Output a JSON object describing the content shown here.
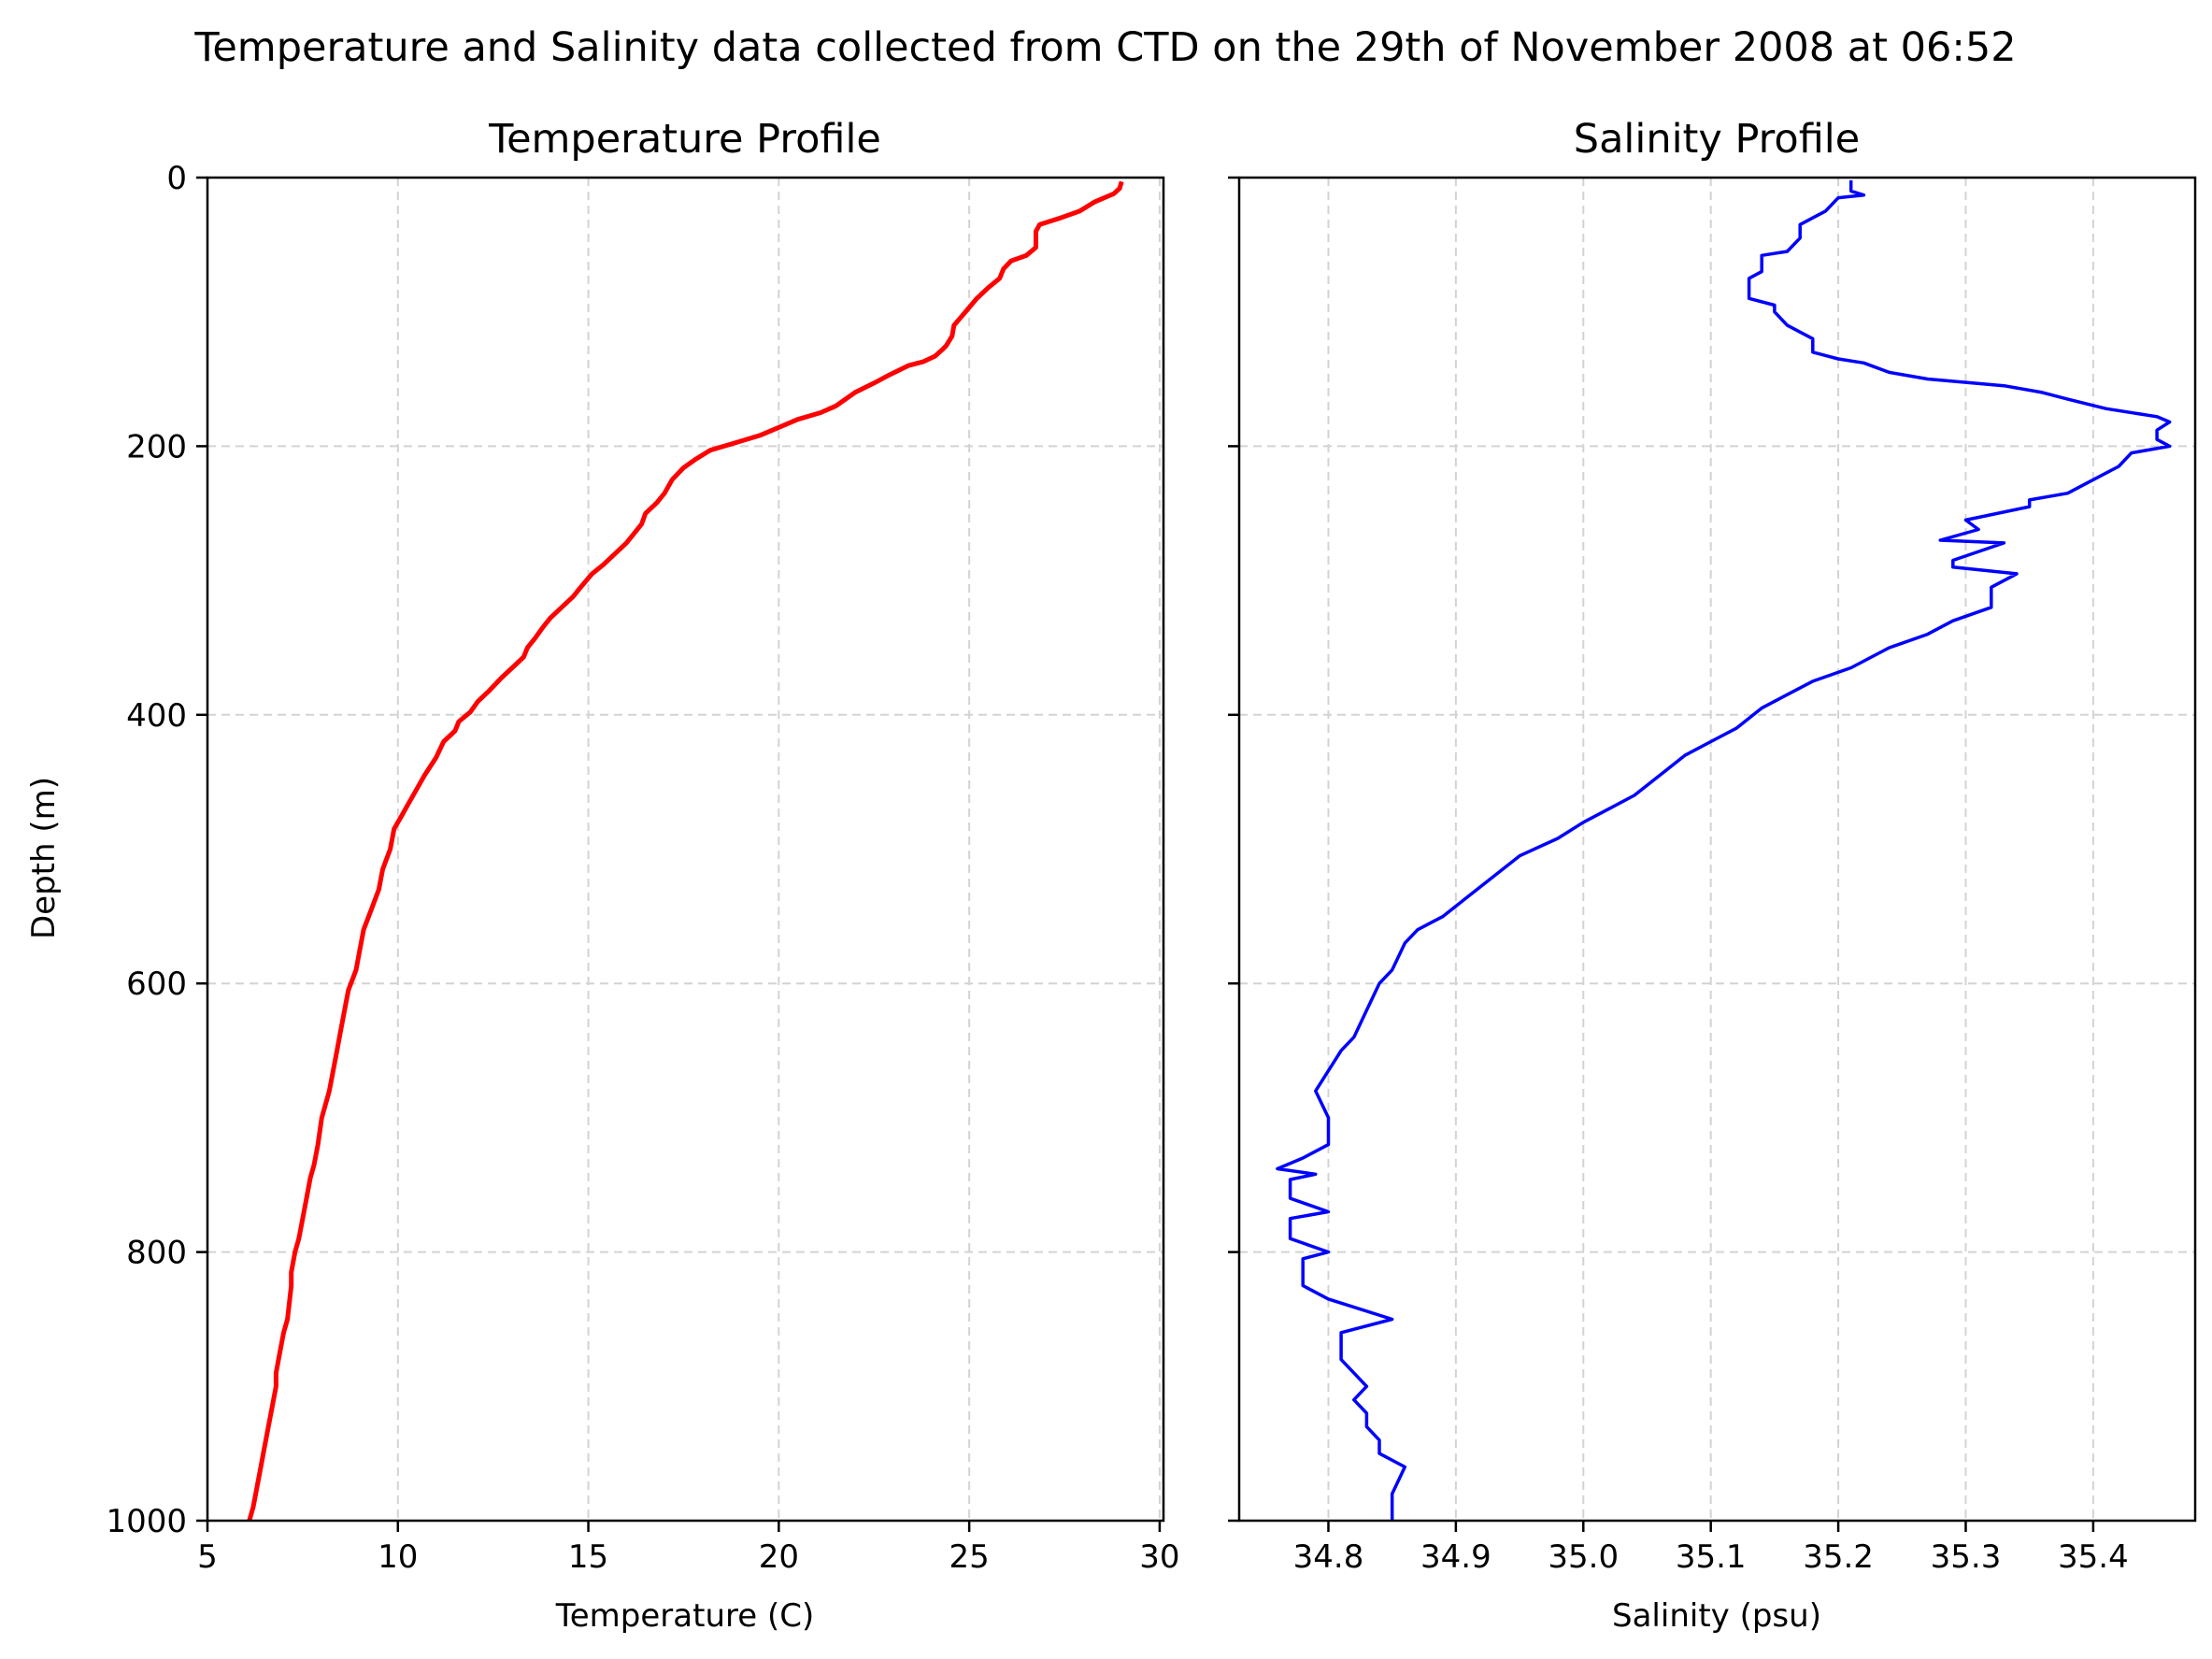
{
  "figure": {
    "suptitle": "Temperature and Salinity data collected from CTD on the 29th of November 2008 at 06:52"
  },
  "chart_data": [
    {
      "type": "line",
      "title": "Temperature Profile",
      "xlabel": "Temperature (C)",
      "ylabel": "Depth (m)",
      "xlim": [
        5,
        30.1
      ],
      "ylim": [
        1000,
        0
      ],
      "xticks": [
        5,
        10,
        15,
        20,
        25,
        30
      ],
      "yticks": [
        0,
        200,
        400,
        600,
        800,
        1000
      ],
      "grid": true,
      "color": "#ff0000",
      "series": [
        {
          "x": [
            29.0,
            28.95,
            28.8,
            28.3,
            27.9,
            27.4,
            26.85,
            26.75,
            26.75,
            26.5,
            26.1,
            25.9,
            25.8,
            25.5,
            25.2,
            24.9,
            24.6,
            24.55,
            24.4,
            24.3,
            24.1,
            23.8,
            23.4,
            22.9,
            22.5,
            22.0,
            21.5,
            21.1,
            20.5,
            20.0,
            19.5,
            18.8,
            18.2,
            17.8,
            17.5,
            17.2,
            17.0,
            16.8,
            16.5,
            16.4,
            16.2,
            16.0,
            15.7,
            15.4,
            15.1,
            14.8,
            14.6,
            14.3,
            14.0,
            13.8,
            13.6,
            13.4,
            13.3,
            13.0,
            12.7,
            12.4,
            12.1,
            11.9,
            11.6,
            11.5,
            11.2,
            11.0,
            10.7,
            10.5,
            10.3,
            10.1,
            9.9,
            9.8,
            9.6,
            9.5,
            9.3,
            9.1,
            9.0,
            8.9,
            8.7,
            8.6,
            8.5,
            8.4,
            8.3,
            8.2,
            8.0,
            7.9,
            7.8,
            7.7,
            7.6,
            7.5,
            7.4,
            7.3,
            7.2,
            7.2,
            7.1,
            7.0,
            6.9,
            6.8,
            6.8,
            6.7,
            6.6,
            6.5,
            6.4,
            6.3,
            6.2,
            6.1
          ],
          "y": [
            3,
            8,
            12,
            18,
            25,
            30,
            35,
            40,
            52,
            58,
            62,
            68,
            75,
            82,
            90,
            100,
            110,
            118,
            125,
            128,
            133,
            137,
            140,
            147,
            153,
            160,
            170,
            175,
            180,
            186,
            192,
            198,
            203,
            210,
            216,
            225,
            235,
            242,
            250,
            258,
            265,
            272,
            280,
            288,
            295,
            305,
            312,
            320,
            328,
            335,
            343,
            350,
            357,
            365,
            373,
            382,
            390,
            398,
            405,
            412,
            420,
            432,
            445,
            455,
            465,
            475,
            485,
            500,
            515,
            530,
            545,
            560,
            575,
            590,
            605,
            620,
            635,
            650,
            665,
            680,
            700,
            720,
            735,
            745,
            760,
            775,
            790,
            800,
            815,
            825,
            850,
            860,
            875,
            890,
            900,
            915,
            930,
            945,
            960,
            975,
            990,
            1000
          ]
        }
      ]
    },
    {
      "type": "line",
      "title": "Salinity Profile",
      "xlabel": "Salinity (psu)",
      "ylim": [
        1000,
        0
      ],
      "xlim": [
        34.73,
        35.48
      ],
      "xticks": [
        34.8,
        34.9,
        35.0,
        35.1,
        35.2,
        35.3,
        35.4
      ],
      "yticks": [
        0,
        200,
        400,
        600,
        800,
        1000
      ],
      "grid": true,
      "color": "#0000ff",
      "series": [
        {
          "x": [
            35.21,
            35.21,
            35.22,
            35.2,
            35.19,
            35.18,
            35.17,
            35.17,
            35.16,
            35.14,
            35.14,
            35.13,
            35.13,
            35.13,
            35.15,
            35.15,
            35.16,
            35.18,
            35.18,
            35.2,
            35.22,
            35.24,
            35.27,
            35.33,
            35.36,
            35.38,
            35.41,
            35.45,
            35.46,
            35.45,
            35.45,
            35.46,
            35.43,
            35.42,
            35.4,
            35.38,
            35.35,
            35.35,
            35.3,
            35.31,
            35.28,
            35.33,
            35.29,
            35.29,
            35.34,
            35.32,
            35.32,
            35.29,
            35.27,
            35.24,
            35.21,
            35.18,
            35.16,
            35.14,
            35.12,
            35.1,
            35.08,
            35.06,
            35.04,
            35.02,
            35.0,
            34.98,
            34.95,
            34.93,
            34.91,
            34.89,
            34.87,
            34.86,
            34.85,
            34.84,
            34.83,
            34.82,
            34.81,
            34.8,
            34.79,
            34.8,
            34.8,
            34.78,
            34.76,
            34.79,
            34.77,
            34.77,
            34.8,
            34.77,
            34.77,
            34.8,
            34.78,
            34.78,
            34.8,
            34.85,
            34.81,
            34.81,
            34.83,
            34.82,
            34.83,
            34.83,
            34.84,
            34.84,
            34.86,
            34.85,
            34.85
          ],
          "y": [
            2,
            10,
            13,
            15,
            25,
            30,
            35,
            45,
            55,
            58,
            70,
            75,
            80,
            90,
            95,
            100,
            110,
            120,
            130,
            135,
            138,
            145,
            150,
            155,
            160,
            165,
            172,
            178,
            182,
            188,
            195,
            200,
            205,
            215,
            225,
            235,
            240,
            245,
            255,
            262,
            270,
            272,
            285,
            290,
            295,
            305,
            320,
            330,
            340,
            350,
            365,
            375,
            385,
            395,
            410,
            420,
            430,
            445,
            460,
            470,
            480,
            492,
            505,
            520,
            535,
            550,
            560,
            570,
            590,
            600,
            620,
            640,
            650,
            665,
            680,
            700,
            720,
            730,
            738,
            742,
            746,
            760,
            770,
            775,
            790,
            800,
            805,
            825,
            835,
            850,
            860,
            880,
            900,
            910,
            920,
            930,
            940,
            950,
            960,
            980,
            1000
          ]
        }
      ]
    }
  ]
}
